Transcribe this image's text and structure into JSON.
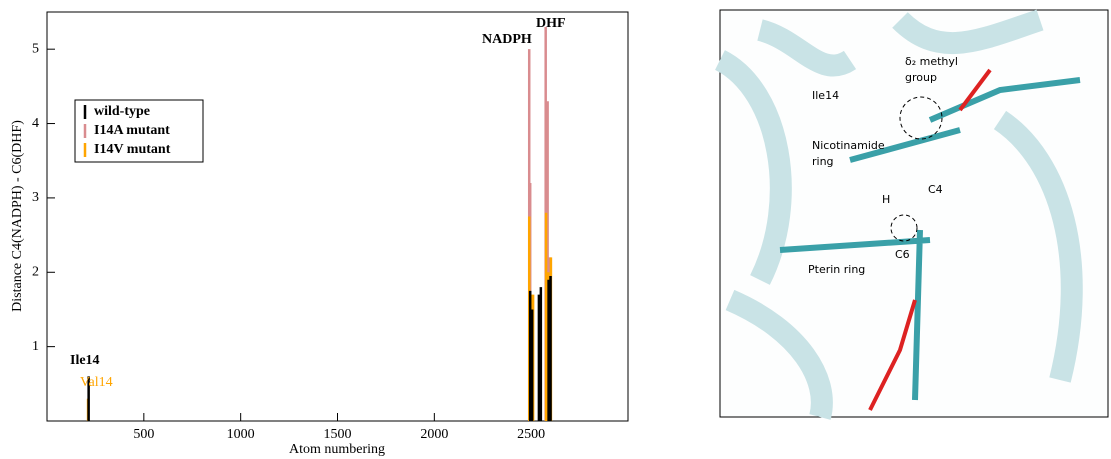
{
  "chart_data": {
    "type": "spike",
    "y_label": "Distance C4(NADPH) - C6(DHF)",
    "x_label": "Atom numbering",
    "xlim": [
      0,
      3000
    ],
    "xticks": [
      500,
      1000,
      1500,
      2000,
      2500
    ],
    "ylim": [
      0,
      5.5
    ],
    "yticks": [
      1,
      2,
      3,
      4,
      5
    ],
    "legend": "upper left",
    "series": [
      {
        "name": "I14A mutant",
        "color": "#d98c8f",
        "x": [
          2490,
          2495,
          2575,
          2580,
          2585,
          2595
        ],
        "values": [
          5.0,
          3.2,
          5.3,
          4.1,
          4.3,
          2.2
        ]
      },
      {
        "name": "I14V mutant",
        "color": "#ffa500",
        "x": [
          212,
          2490,
          2500,
          2510,
          2545,
          2577,
          2588,
          2602
        ],
        "values": [
          0.3,
          2.75,
          1.7,
          1.7,
          1.5,
          2.8,
          2.0,
          2.2
        ]
      },
      {
        "name": "wild-type",
        "color": "#000000",
        "x": [
          215,
          2495,
          2505,
          2540,
          2550,
          2590,
          2600
        ],
        "values": [
          0.6,
          1.75,
          1.5,
          1.7,
          1.8,
          1.9,
          1.95
        ]
      }
    ],
    "annotations": [
      "Ile14",
      "Val14",
      "NADPH",
      "DHF"
    ]
  },
  "image_panel": {
    "labels": [
      "δ₂ methyl",
      "group",
      "Ile14",
      "Nicotinamide",
      "ring",
      "C4",
      "H",
      "C6",
      "Pterin ring"
    ]
  }
}
